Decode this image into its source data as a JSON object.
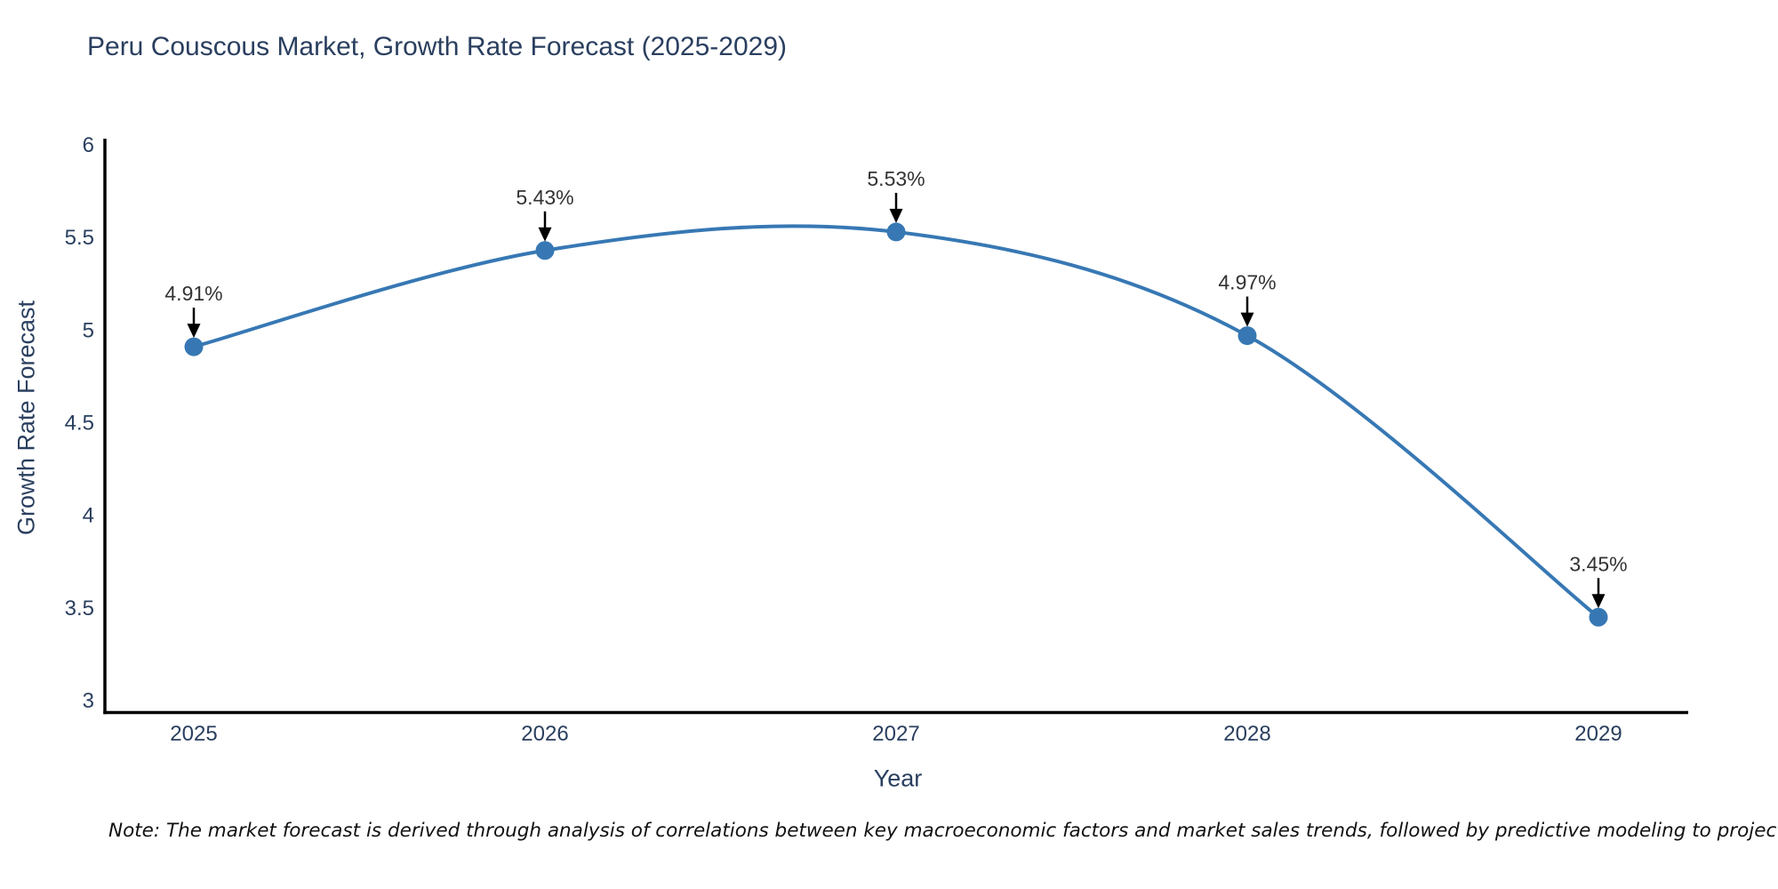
{
  "note": "Note: The market forecast is derived through analysis of correlations between key macroeconomic factors and market sales trends, followed by predictive modeling to project future sales",
  "chart_data": {
    "type": "line",
    "title": "Peru Couscous Market, Growth Rate Forecast (2025-2029)",
    "xlabel": "Year",
    "ylabel": "Growth Rate Forecast",
    "x": [
      2025,
      2026,
      2027,
      2028,
      2029
    ],
    "x_labels": [
      "2025",
      "2026",
      "2027",
      "2028",
      "2029"
    ],
    "series": [
      {
        "name": "Growth Rate Forecast",
        "values": [
          4.91,
          5.43,
          5.53,
          4.97,
          3.45
        ]
      }
    ],
    "point_labels": [
      "4.91%",
      "5.43%",
      "5.53%",
      "4.97%",
      "3.45%"
    ],
    "ylim": [
      3,
      6
    ],
    "yticks": [
      3,
      3.5,
      4,
      4.5,
      5,
      5.5,
      6
    ],
    "ytick_labels": [
      "3",
      "3.5",
      "4",
      "4.5",
      "5",
      "5.5",
      "6"
    ],
    "grid": false,
    "legend": "none",
    "line_shape": "spline",
    "colors": {
      "line": "#3778b4",
      "marker": "#3778b4",
      "axis": "#000000",
      "tick_text": "#2a3f5f",
      "annotation_text": "#333333",
      "arrow": "#000000"
    }
  }
}
